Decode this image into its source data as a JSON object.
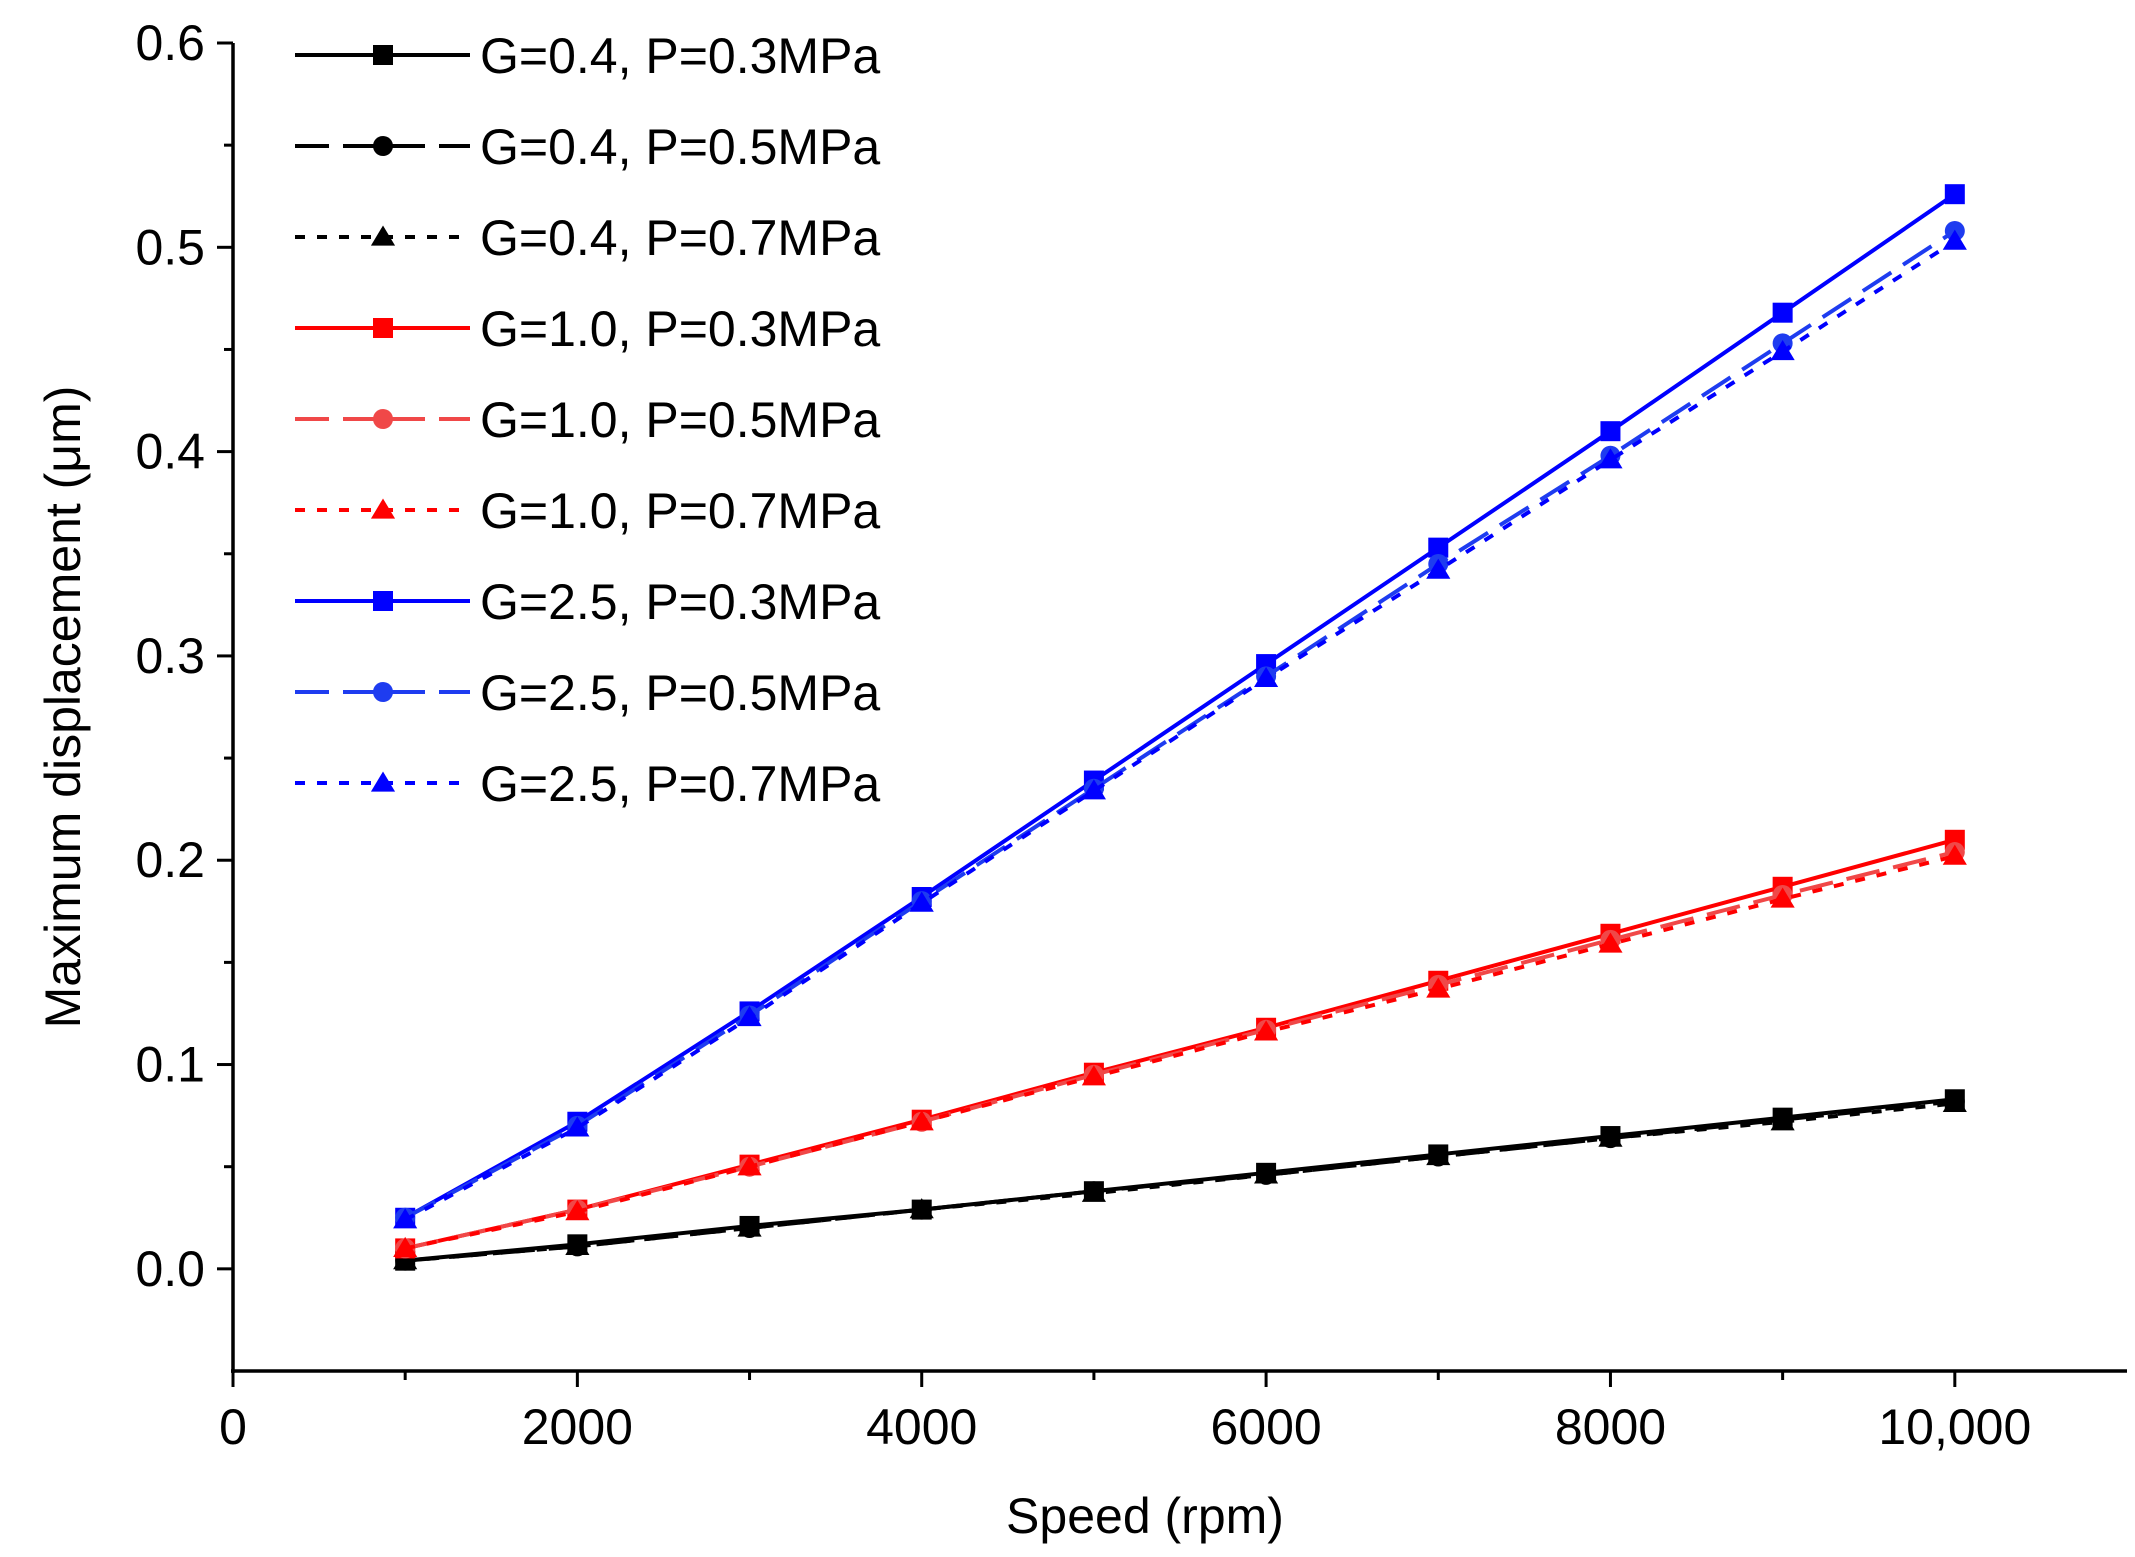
{
  "chart_data": {
    "type": "line",
    "title": "",
    "xlabel": "Speed (rpm)",
    "ylabel": "Maximum displacement (μm)",
    "xlim": [
      0,
      11000
    ],
    "ylim": [
      -0.05,
      0.6
    ],
    "x_ticks": [
      0,
      2000,
      4000,
      6000,
      8000,
      10000
    ],
    "x_tick_labels": [
      "0",
      "2000",
      "4000",
      "6000",
      "8000",
      "10,000"
    ],
    "y_ticks": [
      0.0,
      0.1,
      0.2,
      0.3,
      0.4,
      0.5,
      0.6
    ],
    "y_tick_labels": [
      "0.0",
      "0.1",
      "0.2",
      "0.3",
      "0.4",
      "0.5",
      "0.6"
    ],
    "grid": false,
    "legend_position": "top-left",
    "x": [
      1000,
      2000,
      3000,
      4000,
      5000,
      6000,
      7000,
      8000,
      9000,
      10000
    ],
    "series": [
      {
        "name": "G=0.4, P=0.3MPa",
        "color": "#000000",
        "dash": "solid",
        "marker": "square",
        "values": [
          0.004,
          0.012,
          0.021,
          0.029,
          0.038,
          0.047,
          0.056,
          0.065,
          0.074,
          0.083
        ]
      },
      {
        "name": "G=0.4, P=0.5MPa",
        "color": "#000000",
        "dash": "dashed",
        "marker": "circle",
        "values": [
          0.004,
          0.011,
          0.02,
          0.029,
          0.038,
          0.046,
          0.055,
          0.064,
          0.073,
          0.082
        ]
      },
      {
        "name": "G=0.4, P=0.7MPa",
        "color": "#000000",
        "dash": "dotted",
        "marker": "triangle",
        "values": [
          0.004,
          0.011,
          0.02,
          0.029,
          0.037,
          0.046,
          0.055,
          0.064,
          0.072,
          0.081
        ]
      },
      {
        "name": "G=1.0, P=0.3MPa",
        "color": "#ff0000",
        "dash": "solid",
        "marker": "square",
        "values": [
          0.01,
          0.029,
          0.051,
          0.073,
          0.096,
          0.118,
          0.141,
          0.164,
          0.187,
          0.21
        ]
      },
      {
        "name": "G=1.0, P=0.5MPa",
        "color": "#f04848",
        "dash": "dashed",
        "marker": "circle",
        "values": [
          0.01,
          0.029,
          0.05,
          0.072,
          0.095,
          0.117,
          0.139,
          0.161,
          0.183,
          0.204
        ]
      },
      {
        "name": "G=1.0, P=0.7MPa",
        "color": "#ff0000",
        "dash": "dotted",
        "marker": "triangle",
        "values": [
          0.01,
          0.028,
          0.05,
          0.072,
          0.094,
          0.116,
          0.137,
          0.159,
          0.181,
          0.202
        ]
      },
      {
        "name": "G=2.5, P=0.3MPa",
        "color": "#0000ff",
        "dash": "solid",
        "marker": "square",
        "values": [
          0.025,
          0.072,
          0.126,
          0.182,
          0.239,
          0.296,
          0.353,
          0.41,
          0.468,
          0.526
        ]
      },
      {
        "name": "G=2.5, P=0.5MPa",
        "color": "#1e3cf0",
        "dash": "dashed",
        "marker": "circle",
        "values": [
          0.025,
          0.07,
          0.124,
          0.18,
          0.235,
          0.29,
          0.345,
          0.398,
          0.453,
          0.508
        ]
      },
      {
        "name": "G=2.5, P=0.7MPa",
        "color": "#0000ff",
        "dash": "dotted",
        "marker": "triangle",
        "values": [
          0.024,
          0.069,
          0.123,
          0.179,
          0.234,
          0.289,
          0.342,
          0.396,
          0.449,
          0.503
        ]
      }
    ]
  }
}
